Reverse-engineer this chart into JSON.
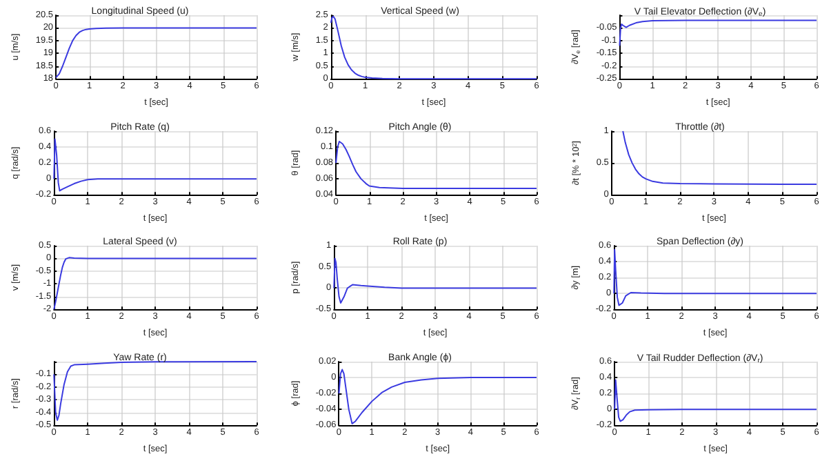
{
  "chart_data": [
    {
      "type": "line",
      "title": "Longitudinal Speed (u)",
      "xlabel": "t [sec]",
      "ylabel": "u [m/s]",
      "grid": true,
      "xlim": [
        0,
        6
      ],
      "xticks": [
        0,
        1,
        2,
        3,
        4,
        5,
        6
      ],
      "ylim": [
        18,
        20.5
      ],
      "yticks": [
        18,
        18.5,
        19,
        19.5,
        20,
        20.5
      ],
      "x": [
        0,
        0.1,
        0.2,
        0.3,
        0.4,
        0.5,
        0.6,
        0.7,
        0.8,
        0.9,
        1,
        1.2,
        1.5,
        2,
        3,
        4,
        5,
        6
      ],
      "series": [
        {
          "color": "#3a3ae0",
          "values": [
            18.05,
            18.2,
            18.5,
            18.85,
            19.2,
            19.5,
            19.7,
            19.83,
            19.9,
            19.94,
            19.96,
            19.98,
            19.99,
            20,
            20,
            20,
            20,
            20
          ]
        }
      ]
    },
    {
      "type": "line",
      "title": "Vertical Speed (w)",
      "xlabel": "t [sec]",
      "ylabel": "w [m/s]",
      "grid": true,
      "xlim": [
        0,
        6
      ],
      "xticks": [
        0,
        1,
        2,
        3,
        4,
        5,
        6
      ],
      "ylim": [
        0,
        2.5
      ],
      "yticks": [
        0,
        0.5,
        1,
        1.5,
        2,
        2.5
      ],
      "x": [
        0,
        0.03,
        0.07,
        0.12,
        0.2,
        0.3,
        0.4,
        0.5,
        0.6,
        0.7,
        0.8,
        0.9,
        1,
        1.2,
        1.5,
        2,
        3,
        6
      ],
      "series": [
        {
          "color": "#3a3ae0",
          "values": [
            2.2,
            2.4,
            2.45,
            2.35,
            1.9,
            1.3,
            0.85,
            0.55,
            0.35,
            0.22,
            0.14,
            0.09,
            0.06,
            0.03,
            0.01,
            0,
            0,
            0
          ]
        }
      ]
    },
    {
      "type": "line",
      "title": "V Tail Elevator Deflection (∂V$_{e}$)",
      "xlabel": "t [sec]",
      "ylabel": "∂V$_{e}$ [rad]",
      "grid": true,
      "xlim": [
        0,
        6
      ],
      "xticks": [
        0,
        1,
        2,
        3,
        4,
        5,
        6
      ],
      "ylim": [
        -0.25,
        0
      ],
      "yticks": [
        -0.25,
        -0.2,
        -0.15,
        -0.1,
        -0.05,
        {
          "value": 0,
          "label": null
        }
      ],
      "x": [
        0,
        0.03,
        0.06,
        0.1,
        0.2,
        0.3,
        0.5,
        0.7,
        1,
        1.5,
        2,
        3,
        6
      ],
      "series": [
        {
          "color": "#3a3ae0",
          "values": [
            -0.12,
            -0.05,
            -0.035,
            -0.04,
            -0.048,
            -0.04,
            -0.03,
            -0.025,
            -0.022,
            -0.021,
            -0.02,
            -0.02,
            -0.02
          ]
        }
      ]
    },
    {
      "type": "line",
      "title": "Pitch Rate (q)",
      "xlabel": "t [sec]",
      "ylabel": "q [rad/s]",
      "grid": true,
      "xlim": [
        0,
        6
      ],
      "xticks": [
        0,
        1,
        2,
        3,
        4,
        5,
        6
      ],
      "ylim": [
        -0.2,
        0.6
      ],
      "yticks": [
        -0.2,
        0,
        0.2,
        0.4,
        0.6
      ],
      "x": [
        0,
        0.03,
        0.08,
        0.13,
        0.17,
        0.25,
        0.4,
        0.6,
        0.8,
        1,
        1.3,
        2,
        6
      ],
      "series": [
        {
          "color": "#3a3ae0",
          "values": [
            0,
            0.5,
            0.3,
            -0.05,
            -0.15,
            -0.13,
            -0.1,
            -0.06,
            -0.03,
            -0.01,
            0,
            0,
            0
          ]
        }
      ]
    },
    {
      "type": "line",
      "title": "Pitch Angle (θ)",
      "xlabel": "t [sec]",
      "ylabel": "θ [rad]",
      "grid": true,
      "xlim": [
        0,
        6
      ],
      "xticks": [
        0,
        1,
        2,
        3,
        4,
        5,
        6
      ],
      "ylim": [
        0.04,
        0.12
      ],
      "yticks": [
        0.04,
        0.06,
        0.08,
        0.1,
        0.12
      ],
      "x": [
        0,
        0.05,
        0.1,
        0.2,
        0.3,
        0.4,
        0.5,
        0.6,
        0.75,
        0.9,
        1,
        1.3,
        2,
        3,
        6
      ],
      "series": [
        {
          "color": "#3a3ae0",
          "values": [
            0.08,
            0.1,
            0.107,
            0.104,
            0.097,
            0.088,
            0.078,
            0.069,
            0.06,
            0.054,
            0.051,
            0.049,
            0.048,
            0.048,
            0.048
          ]
        }
      ]
    },
    {
      "type": "line",
      "title": "Throttle (∂t)",
      "xlabel": "t [sec]",
      "ylabel": "∂t [% * 10$^{2}$]",
      "grid": true,
      "xlim": [
        0,
        6
      ],
      "xticks": [
        0,
        1,
        2,
        3,
        4,
        5,
        6
      ],
      "ylim": [
        0,
        1
      ],
      "yticks": [
        0,
        0.5,
        1
      ],
      "x": [
        0.33,
        0.4,
        0.5,
        0.6,
        0.7,
        0.8,
        0.9,
        1,
        1.2,
        1.5,
        2,
        3,
        4,
        5,
        6
      ],
      "series": [
        {
          "color": "#3a3ae0",
          "values": [
            1,
            0.82,
            0.63,
            0.5,
            0.4,
            0.33,
            0.28,
            0.25,
            0.21,
            0.185,
            0.175,
            0.17,
            0.168,
            0.165,
            0.165
          ]
        }
      ]
    },
    {
      "type": "line",
      "title": "Lateral Speed (v)",
      "xlabel": "t [sec]",
      "ylabel": "v [m/s]",
      "grid": true,
      "xlim": [
        0,
        6
      ],
      "xticks": [
        0,
        1,
        2,
        3,
        4,
        5,
        6
      ],
      "ylim": [
        -2,
        0.5
      ],
      "yticks": [
        -2,
        -1.5,
        -1,
        -0.5,
        0,
        0.5
      ],
      "x": [
        0,
        0.05,
        0.1,
        0.15,
        0.2,
        0.25,
        0.3,
        0.35,
        0.45,
        0.6,
        1,
        2,
        6
      ],
      "series": [
        {
          "color": "#3a3ae0",
          "values": [
            -2,
            -1.7,
            -1.35,
            -1,
            -0.65,
            -0.35,
            -0.15,
            -0.02,
            0.03,
            0.01,
            0,
            0,
            0
          ]
        }
      ]
    },
    {
      "type": "line",
      "title": "Roll Rate (p)",
      "xlabel": "t [sec]",
      "ylabel": "p [rad/s]",
      "grid": true,
      "xlim": [
        0,
        6
      ],
      "xticks": [
        0,
        1,
        2,
        3,
        4,
        5,
        6
      ],
      "ylim": [
        -0.5,
        1
      ],
      "yticks": [
        -0.5,
        0,
        0.5,
        1
      ],
      "x": [
        0,
        0.03,
        0.06,
        0.1,
        0.15,
        0.2,
        0.3,
        0.4,
        0.55,
        0.8,
        1,
        1.5,
        2,
        3,
        6
      ],
      "series": [
        {
          "color": "#3a3ae0",
          "values": [
            0,
            0.7,
            0.6,
            0.2,
            -0.2,
            -0.35,
            -0.2,
            0,
            0.08,
            0.06,
            0.05,
            0.02,
            0,
            0,
            0
          ]
        }
      ]
    },
    {
      "type": "line",
      "title": "Span Deflection (∂y)",
      "xlabel": "t [sec]",
      "ylabel": "∂y [m]",
      "grid": true,
      "xlim": [
        0,
        6
      ],
      "xticks": [
        0,
        1,
        2,
        3,
        4,
        5,
        6
      ],
      "ylim": [
        -0.2,
        0.6
      ],
      "yticks": [
        -0.2,
        0,
        0.2,
        0.4,
        0.6
      ],
      "x": [
        0,
        0.02,
        0.05,
        0.1,
        0.15,
        0.25,
        0.35,
        0.5,
        0.8,
        1.5,
        6
      ],
      "series": [
        {
          "color": "#3a3ae0",
          "values": [
            0,
            0.55,
            0.3,
            -0.05,
            -0.15,
            -0.12,
            -0.03,
            0.01,
            0.005,
            0,
            0
          ]
        }
      ]
    },
    {
      "type": "line",
      "title": "Yaw Rate (r)",
      "xlabel": "t [sec]",
      "ylabel": "r [rad/s]",
      "grid": true,
      "xlim": [
        0,
        6
      ],
      "xticks": [
        0,
        1,
        2,
        3,
        4,
        5,
        6
      ],
      "ylim": [
        -0.5,
        0
      ],
      "yticks": [
        -0.5,
        -0.4,
        -0.3,
        -0.2,
        -0.1,
        {
          "value": 0,
          "label": null
        }
      ],
      "x": [
        0,
        0.05,
        0.1,
        0.15,
        0.2,
        0.3,
        0.4,
        0.5,
        0.6,
        1,
        1.5,
        2,
        3,
        6
      ],
      "series": [
        {
          "color": "#3a3ae0",
          "values": [
            -0.1,
            -0.4,
            -0.46,
            -0.42,
            -0.33,
            -0.18,
            -0.08,
            -0.035,
            -0.025,
            -0.02,
            -0.012,
            -0.006,
            -0.002,
            0
          ]
        }
      ]
    },
    {
      "type": "line",
      "title": "Bank Angle (ϕ)",
      "xlabel": "t [sec]",
      "ylabel": "ϕ [rad]",
      "grid": true,
      "xlim": [
        0,
        6
      ],
      "xticks": [
        0,
        1,
        2,
        3,
        4,
        5,
        6
      ],
      "ylim": [
        -0.06,
        0.02
      ],
      "yticks": [
        -0.06,
        -0.04,
        -0.02,
        0,
        0.02
      ],
      "x": [
        0,
        0.05,
        0.1,
        0.15,
        0.2,
        0.3,
        0.4,
        0.5,
        0.7,
        1,
        1.3,
        1.6,
        2,
        2.5,
        3,
        4,
        6
      ],
      "series": [
        {
          "color": "#3a3ae0",
          "values": [
            -0.02,
            0.005,
            0.01,
            0.005,
            -0.01,
            -0.04,
            -0.058,
            -0.055,
            -0.044,
            -0.03,
            -0.019,
            -0.012,
            -0.006,
            -0.003,
            -0.001,
            0,
            0
          ]
        }
      ]
    },
    {
      "type": "line",
      "title": "V Tail Rudder Deflection (∂V$_{r}$)",
      "xlabel": "t [sec]",
      "ylabel": "∂V$_{r}$ [rad]",
      "grid": true,
      "xlim": [
        0,
        6
      ],
      "xticks": [
        0,
        1,
        2,
        3,
        4,
        5,
        6
      ],
      "ylim": [
        -0.2,
        0.6
      ],
      "yticks": [
        -0.2,
        0,
        0.2,
        0.4,
        0.6
      ],
      "x": [
        0,
        0.03,
        0.07,
        0.12,
        0.17,
        0.25,
        0.35,
        0.45,
        0.6,
        1,
        2,
        6
      ],
      "series": [
        {
          "color": "#3a3ae0",
          "values": [
            0,
            0.37,
            0.15,
            -0.1,
            -0.15,
            -0.13,
            -0.07,
            -0.03,
            -0.01,
            -0.005,
            0,
            0
          ]
        }
      ]
    }
  ]
}
